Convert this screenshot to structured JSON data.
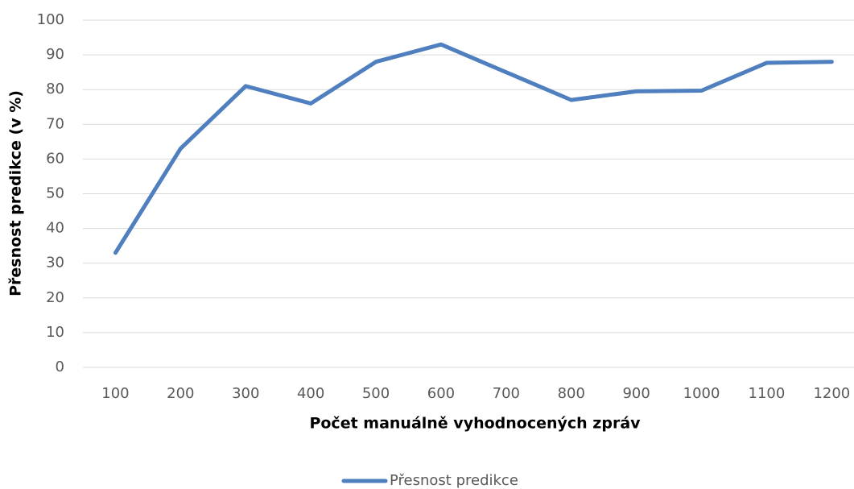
{
  "chart_data": {
    "type": "line",
    "x_label": "Počet manuálně vyhodnocených zpráv",
    "y_label": "Přesnost predikce (v %)",
    "categories": [
      "100",
      "200",
      "300",
      "400",
      "500",
      "600",
      "700",
      "800",
      "900",
      "1000",
      "1100",
      "1200"
    ],
    "series": [
      {
        "name": "Přesnost predikce",
        "color": "#4f7fbe",
        "values": [
          33,
          63,
          81,
          76,
          88,
          93,
          85,
          77,
          79.5,
          79.7,
          87.7,
          88
        ]
      }
    ],
    "ylim": [
      0,
      100
    ],
    "yticks": [
      0,
      10,
      20,
      30,
      40,
      50,
      60,
      70,
      80,
      90,
      100
    ],
    "grid": true,
    "legend": "bottom"
  }
}
